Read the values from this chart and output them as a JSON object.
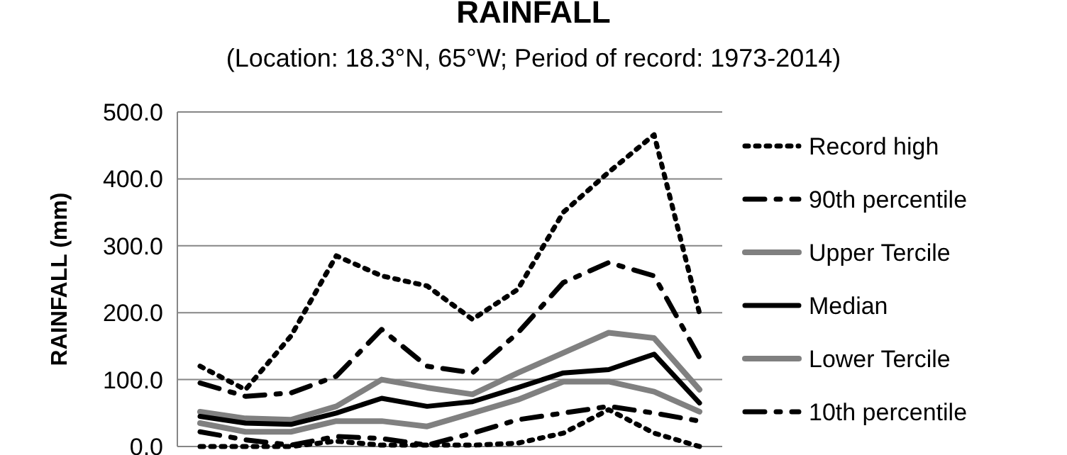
{
  "chart_data": {
    "type": "line",
    "title": "RAINFALL",
    "subtitle": "(Location: 18.3°N, 65°W; Period of record: 1973-2014)",
    "ylabel": "RAINFALL (mm)",
    "categories": [
      null,
      null,
      null,
      null,
      null,
      null,
      null,
      null,
      null,
      null,
      null,
      null
    ],
    "ylim": [
      0,
      500
    ],
    "yticks": [
      {
        "value": 0,
        "label": "0.0"
      },
      {
        "value": 100,
        "label": "100.0"
      },
      {
        "value": 200,
        "label": "200.0"
      },
      {
        "value": 300,
        "label": "300.0"
      },
      {
        "value": 400,
        "label": "400.0"
      },
      {
        "value": 500,
        "label": "500.0"
      }
    ],
    "grid": "y",
    "legend": "right",
    "marker": "none",
    "series": [
      {
        "name": "Record high",
        "color": "#000000",
        "line_style": "dotted",
        "values": [
          120,
          85,
          165,
          285,
          255,
          240,
          190,
          235,
          350,
          410,
          466,
          199
        ]
      },
      {
        "name": "90th percentile",
        "color": "#000000",
        "line_style": "dashed",
        "values": [
          95,
          75,
          80,
          105,
          175,
          120,
          110,
          170,
          245,
          275,
          255,
          133
        ]
      },
      {
        "name": "Upper Tercile",
        "color": "#808080",
        "line_style": "solid",
        "values": [
          52,
          42,
          40,
          60,
          100,
          88,
          78,
          110,
          140,
          170,
          162,
          85
        ]
      },
      {
        "name": "Median",
        "color": "#000000",
        "line_style": "solid",
        "values": [
          45,
          35,
          33,
          50,
          72,
          60,
          67,
          88,
          110,
          115,
          138,
          65
        ]
      },
      {
        "name": "Lower Tercile",
        "color": "#808080",
        "line_style": "solid",
        "values": [
          35,
          22,
          22,
          38,
          38,
          30,
          50,
          70,
          97,
          97,
          82,
          52
        ]
      },
      {
        "name": "10th percentile",
        "color": "#000000",
        "line_style": "dashed",
        "values": [
          22,
          10,
          2,
          15,
          12,
          2,
          20,
          40,
          50,
          60,
          50,
          38
        ]
      },
      {
        "color": "#000000",
        "line_style": "dotted",
        "values": [
          0,
          0,
          0,
          8,
          2,
          2,
          2,
          5,
          20,
          55,
          20,
          0
        ]
      }
    ]
  }
}
